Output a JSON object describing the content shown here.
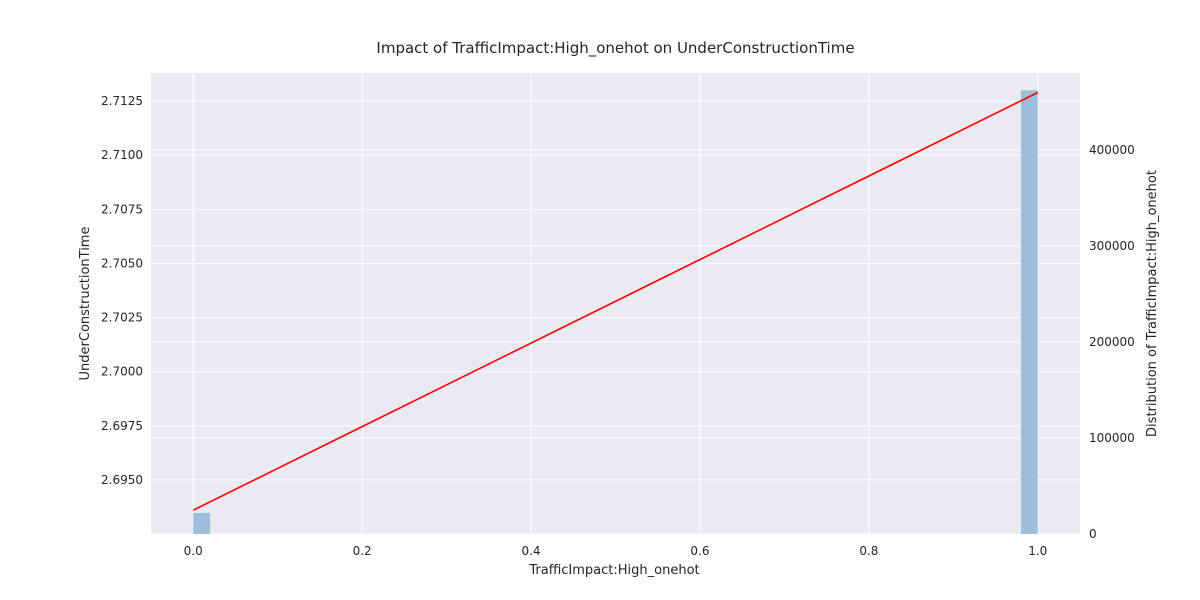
{
  "chart_data": {
    "type": "line",
    "title": "Impact of TrafficImpact:High_onehot on UnderConstructionTime",
    "xlabel": "TrafficImpact:High_onehot",
    "ylabel": "UnderConstructionTime",
    "y2label": "Distribution of TrafficImpact:High_onehot",
    "xlim": [
      -0.05,
      1.05
    ],
    "ylim": [
      2.6925,
      2.7138
    ],
    "y2lim": [
      0,
      480000
    ],
    "x_ticks": [
      0.0,
      0.2,
      0.4,
      0.6,
      0.8,
      1.0
    ],
    "x_tick_labels": [
      "0.0",
      "0.2",
      "0.4",
      "0.6",
      "0.8",
      "1.0"
    ],
    "y_ticks": [
      2.695,
      2.6975,
      2.7,
      2.7025,
      2.705,
      2.7075,
      2.71,
      2.7125
    ],
    "y_tick_labels": [
      "2.6950",
      "2.6975",
      "2.7000",
      "2.7025",
      "2.7050",
      "2.7075",
      "2.7100",
      "2.7125"
    ],
    "y2_ticks": [
      0,
      100000,
      200000,
      300000,
      400000
    ],
    "y2_tick_labels": [
      "0",
      "100000",
      "200000",
      "300000",
      "400000"
    ],
    "grid": true,
    "series": [
      {
        "kind": "line",
        "color": "#ff0000",
        "x": [
          0.0,
          1.0
        ],
        "y": [
          2.6936,
          2.7129
        ]
      },
      {
        "kind": "histogram",
        "axis": "right",
        "color": "#9dbfdc",
        "bins": [
          {
            "x0": 0.0,
            "x1": 0.02,
            "count": 22000
          },
          {
            "x0": 0.98,
            "x1": 1.0,
            "count": 462000
          }
        ]
      }
    ]
  }
}
